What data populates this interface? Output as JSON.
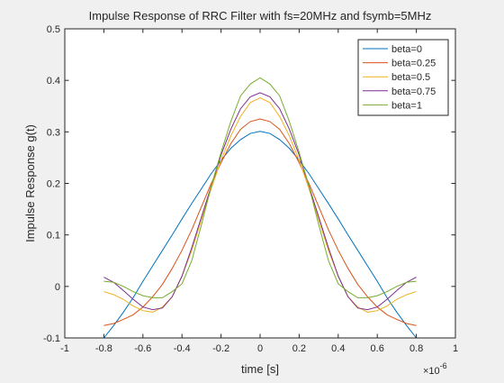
{
  "chart_data": {
    "type": "line",
    "title": "Impulse Response of RRC Filter with fs=20MHz and fsymb=5MHz",
    "xlabel": "time [s]",
    "ylabel": "Impulse Response g(t)",
    "x_exponent_label": "×10",
    "x_exponent_power": "-6",
    "xlim": [
      -1,
      1
    ],
    "ylim": [
      -0.1,
      0.5
    ],
    "xticks": [
      "-1",
      "-0.8",
      "-0.6",
      "-0.4",
      "-0.2",
      "0",
      "0.2",
      "0.4",
      "0.6",
      "0.8",
      "1"
    ],
    "yticks": [
      "-0.1",
      "0",
      "0.1",
      "0.2",
      "0.3",
      "0.4",
      "0.5"
    ],
    "x": [
      -0.8,
      -0.75,
      -0.7,
      -0.65,
      -0.6,
      -0.55,
      -0.5,
      -0.45,
      -0.4,
      -0.35,
      -0.3,
      -0.25,
      -0.2,
      -0.15,
      -0.1,
      -0.05,
      0,
      0.05,
      0.1,
      0.15,
      0.2,
      0.25,
      0.3,
      0.35,
      0.4,
      0.45,
      0.5,
      0.55,
      0.6,
      0.65,
      0.7,
      0.75,
      0.8
    ],
    "series": [
      {
        "name": "beta=0",
        "color": "#0072bd",
        "values": [
          -0.1,
          -0.076,
          -0.05,
          -0.022,
          0.01,
          0.04,
          0.07,
          0.1,
          0.131,
          0.161,
          0.19,
          0.219,
          0.245,
          0.268,
          0.285,
          0.297,
          0.301,
          0.297,
          0.285,
          0.268,
          0.245,
          0.219,
          0.19,
          0.161,
          0.131,
          0.1,
          0.07,
          0.04,
          0.01,
          -0.022,
          -0.05,
          -0.076,
          -0.1
        ]
      },
      {
        "name": "beta=0.25",
        "color": "#d95319",
        "values": [
          -0.076,
          -0.072,
          -0.064,
          -0.055,
          -0.04,
          -0.02,
          0.004,
          0.035,
          0.07,
          0.11,
          0.155,
          0.2,
          0.24,
          0.277,
          0.305,
          0.32,
          0.325,
          0.32,
          0.305,
          0.277,
          0.24,
          0.2,
          0.155,
          0.11,
          0.07,
          0.035,
          0.004,
          -0.02,
          -0.04,
          -0.055,
          -0.064,
          -0.072,
          -0.076
        ]
      },
      {
        "name": "beta=0.5",
        "color": "#edb120",
        "values": [
          -0.01,
          -0.016,
          -0.025,
          -0.038,
          -0.047,
          -0.05,
          -0.04,
          -0.02,
          0.02,
          0.07,
          0.13,
          0.19,
          0.245,
          0.292,
          0.33,
          0.357,
          0.366,
          0.357,
          0.33,
          0.292,
          0.245,
          0.19,
          0.13,
          0.07,
          0.02,
          -0.02,
          -0.04,
          -0.05,
          -0.047,
          -0.038,
          -0.025,
          -0.016,
          -0.01
        ]
      },
      {
        "name": "beta=0.75",
        "color": "#7e2f8e",
        "values": [
          0.018,
          0.008,
          -0.008,
          -0.025,
          -0.04,
          -0.045,
          -0.042,
          -0.02,
          0.02,
          0.075,
          0.135,
          0.195,
          0.255,
          0.305,
          0.345,
          0.368,
          0.376,
          0.368,
          0.345,
          0.305,
          0.255,
          0.195,
          0.135,
          0.075,
          0.02,
          -0.02,
          -0.042,
          -0.045,
          -0.04,
          -0.025,
          -0.008,
          0.008,
          0.018
        ]
      },
      {
        "name": "beta=1",
        "color": "#77ac30",
        "values": [
          0.01,
          0.008,
          0.0,
          -0.01,
          -0.018,
          -0.022,
          -0.022,
          -0.01,
          0.005,
          0.05,
          0.12,
          0.195,
          0.26,
          0.32,
          0.37,
          0.393,
          0.405,
          0.393,
          0.37,
          0.32,
          0.26,
          0.195,
          0.12,
          0.05,
          0.005,
          -0.01,
          -0.022,
          -0.022,
          -0.018,
          -0.01,
          0.0,
          0.008,
          0.01
        ]
      }
    ],
    "grid": false,
    "legend_position": "top-right"
  }
}
